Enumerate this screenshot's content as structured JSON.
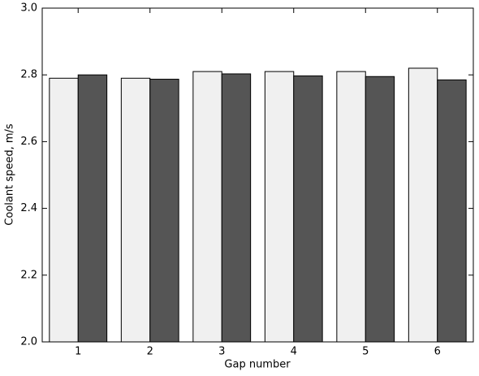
{
  "chart_data": {
    "type": "bar",
    "x_label": "Gap number",
    "y_label": "Coolant speed, m/s",
    "categories": [
      "1",
      "2",
      "3",
      "4",
      "5",
      "6"
    ],
    "series": [
      {
        "color": "#f0f0f0",
        "values": [
          2.79,
          2.79,
          2.81,
          2.81,
          2.81,
          2.82
        ]
      },
      {
        "color": "#555555",
        "values": [
          2.8,
          2.787,
          2.803,
          2.797,
          2.795,
          2.785
        ]
      }
    ],
    "ylim": [
      2.0,
      3.0
    ],
    "yticks": [
      {
        "value": 2.0,
        "label": "2.0"
      },
      2.2,
      2.4,
      2.6,
      2.8,
      {
        "value": 3.0,
        "label": "3.0"
      }
    ],
    "grid": false
  }
}
